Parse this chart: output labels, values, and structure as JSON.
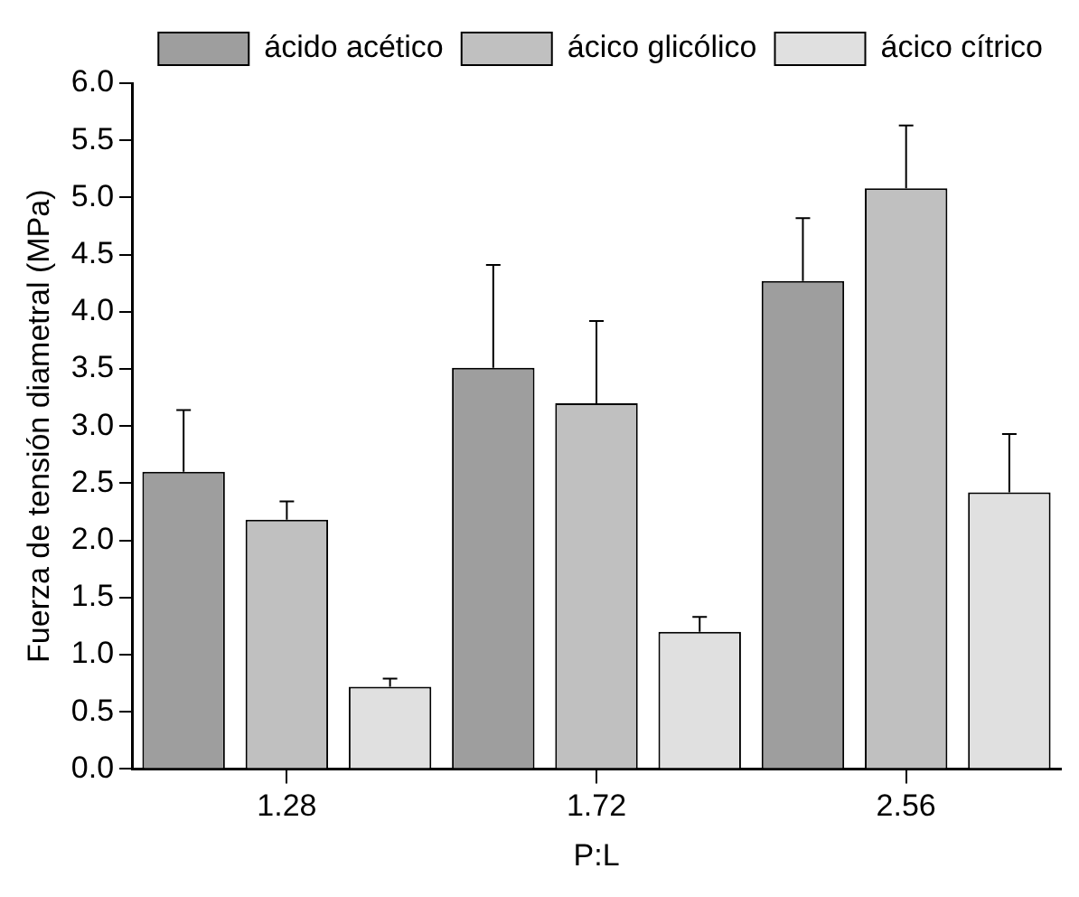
{
  "chart_data": {
    "type": "bar",
    "xlabel": "P:L",
    "ylabel": "Fuerza de tensión diametral (MPa)",
    "categories": [
      "1.28",
      "1.72",
      "2.56"
    ],
    "series": [
      {
        "name": "ácido acético",
        "color": "#9e9e9e",
        "values": [
          2.6,
          3.51,
          4.27
        ],
        "errors": [
          [
            2.6,
            3.14
          ],
          [
            3.51,
            4.41
          ],
          [
            4.27,
            4.82
          ]
        ]
      },
      {
        "name": "ácico glicólico",
        "color": "#c0c0c0",
        "values": [
          2.18,
          3.2,
          5.08
        ],
        "errors": [
          [
            2.18,
            2.34
          ],
          [
            3.2,
            3.92
          ],
          [
            5.08,
            5.63
          ]
        ]
      },
      {
        "name": "ácico cítrico",
        "color": "#e0e0e0",
        "values": [
          0.72,
          1.2,
          2.42
        ],
        "errors": [
          [
            0.72,
            0.79
          ],
          [
            1.2,
            1.33
          ],
          [
            2.42,
            2.93
          ]
        ]
      }
    ],
    "ylim": [
      0,
      6
    ],
    "yticks": [
      {
        "value": 0,
        "label": "0.0"
      },
      0.5,
      {
        "value": 1,
        "label": "1.0"
      },
      1.5,
      {
        "value": 2,
        "label": "2.0"
      },
      2.5,
      {
        "value": 3,
        "label": "3.0"
      },
      3.5,
      {
        "value": 4,
        "label": "4.0"
      },
      4.5,
      {
        "value": 5,
        "label": "5.0"
      },
      5.5,
      {
        "value": 6,
        "label": "6.0"
      }
    ],
    "grid": false,
    "legend": "top"
  }
}
